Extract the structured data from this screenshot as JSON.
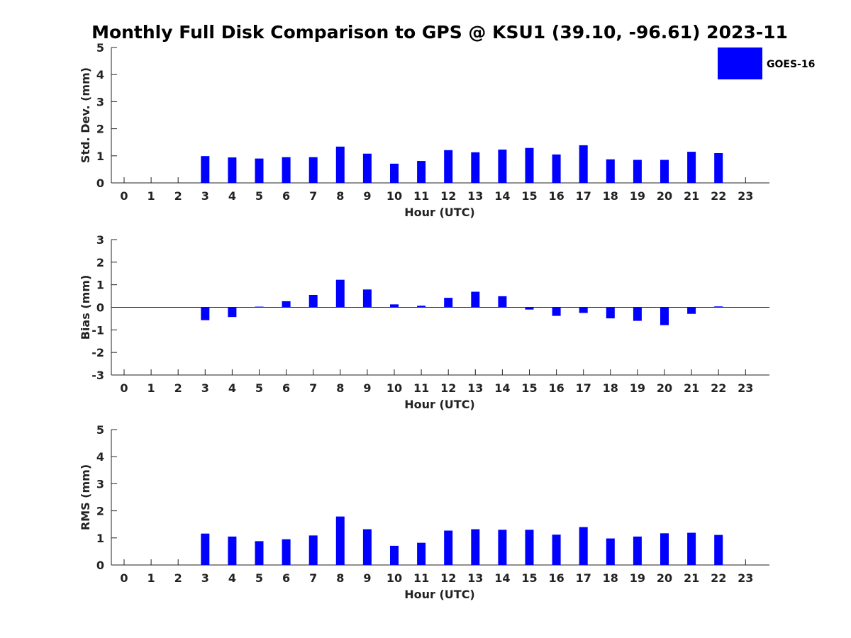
{
  "colors": {
    "bar": "#0000ff",
    "axis": "#222222"
  },
  "chart_data": [
    {
      "type": "bar",
      "title": "Monthly Full Disk Comparison to GPS @ KSU1 (39.10, -96.61) 2023-11",
      "xlabel": "Hour (UTC)",
      "ylabel": "Std. Dev. (mm)",
      "ylim": [
        0,
        5
      ],
      "yticks": [
        "0",
        "1",
        "2",
        "3",
        "4",
        "5"
      ],
      "categories": [
        "0",
        "1",
        "2",
        "3",
        "4",
        "5",
        "6",
        "7",
        "8",
        "9",
        "10",
        "11",
        "12",
        "13",
        "14",
        "15",
        "16",
        "17",
        "18",
        "19",
        "20",
        "21",
        "22",
        "23"
      ],
      "legend": {
        "placement": "top-right",
        "entries": [
          "GOES-16"
        ]
      },
      "series": [
        {
          "name": "GOES-16",
          "values": [
            null,
            null,
            null,
            0.99,
            0.94,
            0.9,
            0.95,
            0.95,
            1.34,
            1.08,
            0.71,
            0.81,
            1.21,
            1.13,
            1.23,
            1.29,
            1.05,
            1.39,
            0.87,
            0.85,
            0.85,
            1.15,
            1.1,
            null
          ]
        }
      ]
    },
    {
      "type": "bar",
      "xlabel": "Hour (UTC)",
      "ylabel": "Bias (mm)",
      "ylim": [
        -3,
        3
      ],
      "yticks": [
        "-3",
        "-2",
        "-1",
        "0",
        "1",
        "2",
        "3"
      ],
      "categories": [
        "0",
        "1",
        "2",
        "3",
        "4",
        "5",
        "6",
        "7",
        "8",
        "9",
        "10",
        "11",
        "12",
        "13",
        "14",
        "15",
        "16",
        "17",
        "18",
        "19",
        "20",
        "21",
        "22",
        "23"
      ],
      "zero_line": true,
      "series": [
        {
          "name": "GOES-16",
          "values": [
            null,
            null,
            null,
            -0.57,
            -0.43,
            0.03,
            0.27,
            0.55,
            1.22,
            0.79,
            0.13,
            0.07,
            0.42,
            0.69,
            0.49,
            -0.1,
            -0.38,
            -0.25,
            -0.49,
            -0.6,
            -0.79,
            -0.29,
            0.04,
            null
          ]
        }
      ]
    },
    {
      "type": "bar",
      "xlabel": "Hour (UTC)",
      "ylabel": "RMS (mm)",
      "ylim": [
        0,
        5
      ],
      "yticks": [
        "0",
        "1",
        "2",
        "3",
        "4",
        "5"
      ],
      "categories": [
        "0",
        "1",
        "2",
        "3",
        "4",
        "5",
        "6",
        "7",
        "8",
        "9",
        "10",
        "11",
        "12",
        "13",
        "14",
        "15",
        "16",
        "17",
        "18",
        "19",
        "20",
        "21",
        "22",
        "23"
      ],
      "series": [
        {
          "name": "GOES-16",
          "values": [
            null,
            null,
            null,
            1.16,
            1.05,
            0.88,
            0.95,
            1.09,
            1.79,
            1.32,
            0.71,
            0.82,
            1.27,
            1.32,
            1.3,
            1.3,
            1.12,
            1.4,
            0.98,
            1.05,
            1.17,
            1.19,
            1.11,
            null
          ]
        }
      ]
    }
  ]
}
